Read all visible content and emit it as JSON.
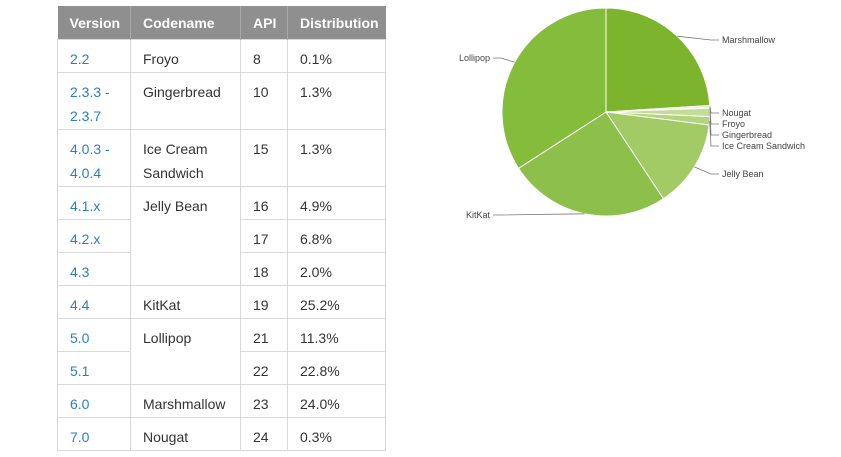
{
  "table": {
    "headers": [
      "Version",
      "Codename",
      "API",
      "Distribution"
    ],
    "rows": [
      {
        "version": "2.2",
        "codename": "Froyo",
        "api": "8",
        "distribution": "0.1%"
      },
      {
        "version": "2.3.3 - 2.3.7",
        "codename": "Gingerbread",
        "api": "10",
        "distribution": "1.3%"
      },
      {
        "version": "4.0.3 - 4.0.4",
        "codename": "Ice Cream Sandwich",
        "api": "15",
        "distribution": "1.3%"
      },
      {
        "version": "4.1.x",
        "codename": "Jelly Bean",
        "api": "16",
        "distribution": "4.9%"
      },
      {
        "version": "4.2.x",
        "codename": "",
        "api": "17",
        "distribution": "6.8%"
      },
      {
        "version": "4.3",
        "codename": "",
        "api": "18",
        "distribution": "2.0%"
      },
      {
        "version": "4.4",
        "codename": "KitKat",
        "api": "19",
        "distribution": "25.2%"
      },
      {
        "version": "5.0",
        "codename": "Lollipop",
        "api": "21",
        "distribution": "11.3%"
      },
      {
        "version": "5.1",
        "codename": "",
        "api": "22",
        "distribution": "22.8%"
      },
      {
        "version": "6.0",
        "codename": "Marshmallow",
        "api": "23",
        "distribution": "24.0%"
      },
      {
        "version": "7.0",
        "codename": "Nougat",
        "api": "24",
        "distribution": "0.3%"
      }
    ]
  },
  "chart_data": {
    "type": "pie",
    "title": "",
    "slices": [
      {
        "label": "Marshmallow",
        "value": 24.0,
        "color": "#7cb42c"
      },
      {
        "label": "Nougat",
        "value": 0.3,
        "color": "#cfe2a9"
      },
      {
        "label": "Froyo",
        "value": 0.1,
        "color": "#d7e8b6"
      },
      {
        "label": "Gingerbread",
        "value": 1.3,
        "color": "#c4dc96"
      },
      {
        "label": "Ice Cream Sandwich",
        "value": 1.3,
        "color": "#b3d37f"
      },
      {
        "label": "Jelly Bean",
        "value": 13.7,
        "color": "#a2cb66"
      },
      {
        "label": "KitKat",
        "value": 25.2,
        "color": "#8cc04a"
      },
      {
        "label": "Lollipop",
        "value": 34.1,
        "color": "#84bc3b"
      }
    ]
  }
}
